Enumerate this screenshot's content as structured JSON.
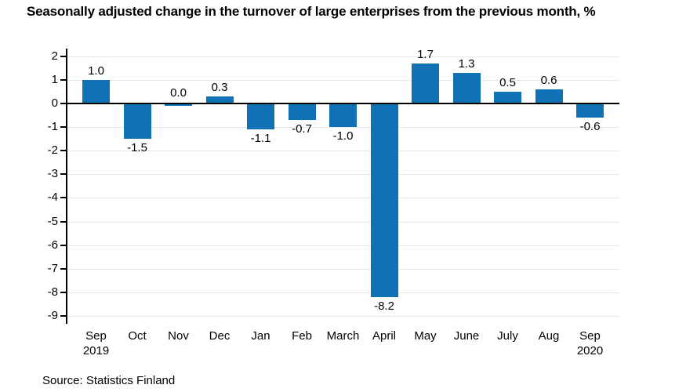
{
  "title": "Seasonally adjusted change in the turnover of large enterprises from the previous month, %",
  "source": "Source: Statistics Finland",
  "chart_data": {
    "type": "bar",
    "title": "Seasonally adjusted change in the turnover of large enterprises from the previous month, %",
    "categories": [
      "Sep\n2019",
      "Oct",
      "Nov",
      "Dec",
      "Jan",
      "Feb",
      "March",
      "April",
      "May",
      "June",
      "July",
      "Aug",
      "Sep\n2020"
    ],
    "values": [
      1.0,
      -1.5,
      0.0,
      0.3,
      -1.1,
      -0.7,
      -1.0,
      -8.2,
      1.7,
      1.3,
      0.5,
      0.6,
      -0.6
    ],
    "value_labels": [
      "1.0",
      "-1.5",
      "0.0",
      "0.3",
      "-1.1",
      "-0.7",
      "-1.0",
      "-8.2",
      "1.7",
      "1.3",
      "0.5",
      "0.6",
      "-0.6"
    ],
    "y_ticks": [
      2,
      1,
      0,
      -1,
      -2,
      -3,
      -4,
      -5,
      -6,
      -7,
      -8,
      -9
    ],
    "ylim": [
      -9.3,
      2.3
    ],
    "xlabel": "",
    "ylabel": "",
    "legend_position": "none",
    "grid": true,
    "bar_color": "#1072b5",
    "grid_color": "#e8e8e8",
    "axis_color": "#000000",
    "annotation": "Source: Statistics Finland"
  }
}
